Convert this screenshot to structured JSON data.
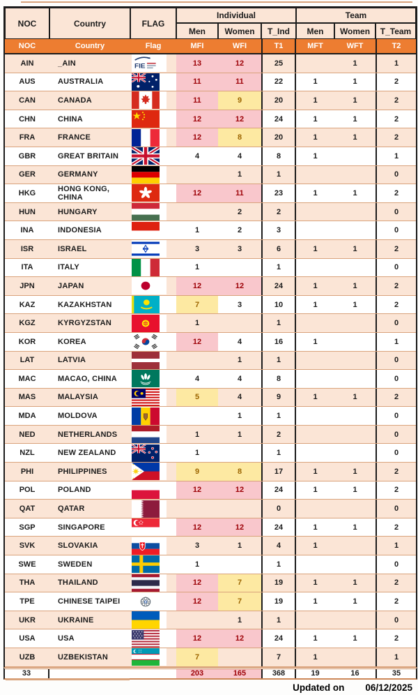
{
  "header": {
    "group": {
      "noc": "NOC",
      "country": "Country",
      "flag": "FLAG",
      "individual": "Individual",
      "team": "Team"
    },
    "sub": {
      "ind_men": "Men",
      "ind_women": "Women",
      "t_ind": "T_Ind",
      "team_men": "Men",
      "team_women": "Women",
      "t_team": "T_Team"
    },
    "code_row": {
      "noc": "NOC",
      "country": "Country",
      "flag": "Flag",
      "mfi": "MFI",
      "wfi": "WFI",
      "t1": "T1",
      "mft": "MFT",
      "wft": "WFT",
      "t2": "T2"
    }
  },
  "rows": [
    {
      "noc": "AIN",
      "country": "_AIN",
      "flag": "ain",
      "flag_icon": "flag-ain-fie-icon",
      "mfi": "13",
      "mfi_hl": "p",
      "wfi": "12",
      "wfi_hl": "p",
      "t1": "25",
      "mft": "",
      "wft": "1",
      "t2": "1"
    },
    {
      "noc": "AUS",
      "country": "AUSTRALIA",
      "flag": "aus",
      "flag_icon": "flag-australia-icon",
      "mfi": "11",
      "mfi_hl": "p",
      "wfi": "11",
      "wfi_hl": "p",
      "t1": "22",
      "mft": "1",
      "wft": "1",
      "t2": "2"
    },
    {
      "noc": "CAN",
      "country": "CANADA",
      "flag": "can",
      "flag_icon": "flag-canada-icon",
      "mfi": "11",
      "mfi_hl": "p",
      "wfi": "9",
      "wfi_hl": "y",
      "t1": "20",
      "mft": "1",
      "wft": "1",
      "t2": "2"
    },
    {
      "noc": "CHN",
      "country": "CHINA",
      "flag": "chn",
      "flag_icon": "flag-china-icon",
      "mfi": "12",
      "mfi_hl": "p",
      "wfi": "12",
      "wfi_hl": "p",
      "t1": "24",
      "mft": "1",
      "wft": "1",
      "t2": "2"
    },
    {
      "noc": "FRA",
      "country": "FRANCE",
      "flag": "fra",
      "flag_icon": "flag-france-icon",
      "mfi": "12",
      "mfi_hl": "p",
      "wfi": "8",
      "wfi_hl": "y",
      "t1": "20",
      "mft": "1",
      "wft": "1",
      "t2": "2"
    },
    {
      "noc": "GBR",
      "country": "GREAT BRITAIN",
      "flag": "gbr",
      "flag_icon": "flag-great-britain-icon",
      "mfi": "4",
      "mfi_hl": "",
      "wfi": "4",
      "wfi_hl": "",
      "t1": "8",
      "mft": "1",
      "wft": "",
      "t2": "1"
    },
    {
      "noc": "GER",
      "country": "GERMANY",
      "flag": "ger",
      "flag_icon": "flag-germany-icon",
      "mfi": "",
      "mfi_hl": "",
      "wfi": "1",
      "wfi_hl": "",
      "t1": "1",
      "mft": "",
      "wft": "",
      "t2": "0"
    },
    {
      "noc": "HKG",
      "country": "HONG KONG, CHINA",
      "flag": "hkg",
      "flag_icon": "flag-hong-kong-icon",
      "mfi": "12",
      "mfi_hl": "p",
      "wfi": "11",
      "wfi_hl": "p",
      "t1": "23",
      "mft": "1",
      "wft": "1",
      "t2": "2"
    },
    {
      "noc": "HUN",
      "country": "HUNGARY",
      "flag": "hun",
      "flag_icon": "flag-hungary-icon",
      "mfi": "",
      "mfi_hl": "",
      "wfi": "2",
      "wfi_hl": "",
      "t1": "2",
      "mft": "",
      "wft": "",
      "t2": "0"
    },
    {
      "noc": "INA",
      "country": "INDONESIA",
      "flag": "ina",
      "flag_icon": "flag-indonesia-icon",
      "mfi": "1",
      "mfi_hl": "",
      "wfi": "2",
      "wfi_hl": "",
      "t1": "3",
      "mft": "",
      "wft": "",
      "t2": "0"
    },
    {
      "noc": "ISR",
      "country": "ISRAEL",
      "flag": "isr",
      "flag_icon": "flag-israel-icon",
      "mfi": "3",
      "mfi_hl": "",
      "wfi": "3",
      "wfi_hl": "",
      "t1": "6",
      "mft": "1",
      "wft": "1",
      "t2": "2"
    },
    {
      "noc": "ITA",
      "country": "ITALY",
      "flag": "ita",
      "flag_icon": "flag-italy-icon",
      "mfi": "1",
      "mfi_hl": "",
      "wfi": "",
      "wfi_hl": "",
      "t1": "1",
      "mft": "",
      "wft": "",
      "t2": "0"
    },
    {
      "noc": "JPN",
      "country": "JAPAN",
      "flag": "jpn",
      "flag_icon": "flag-japan-icon",
      "mfi": "12",
      "mfi_hl": "p",
      "wfi": "12",
      "wfi_hl": "p",
      "t1": "24",
      "mft": "1",
      "wft": "1",
      "t2": "2"
    },
    {
      "noc": "KAZ",
      "country": "KAZAKHSTAN",
      "flag": "kaz",
      "flag_icon": "flag-kazakhstan-icon",
      "mfi": "7",
      "mfi_hl": "y",
      "wfi": "3",
      "wfi_hl": "",
      "t1": "10",
      "mft": "1",
      "wft": "1",
      "t2": "2"
    },
    {
      "noc": "KGZ",
      "country": "KYRGYZSTAN",
      "flag": "kgz",
      "flag_icon": "flag-kyrgyzstan-icon",
      "mfi": "1",
      "mfi_hl": "",
      "wfi": "",
      "wfi_hl": "",
      "t1": "1",
      "mft": "",
      "wft": "",
      "t2": "0"
    },
    {
      "noc": "KOR",
      "country": "KOREA",
      "flag": "kor",
      "flag_icon": "flag-korea-icon",
      "mfi": "12",
      "mfi_hl": "p",
      "wfi": "4",
      "wfi_hl": "",
      "t1": "16",
      "mft": "1",
      "wft": "",
      "t2": "1"
    },
    {
      "noc": "LAT",
      "country": "LATVIA",
      "flag": "lat",
      "flag_icon": "flag-latvia-icon",
      "mfi": "",
      "mfi_hl": "",
      "wfi": "1",
      "wfi_hl": "",
      "t1": "1",
      "mft": "",
      "wft": "",
      "t2": "0"
    },
    {
      "noc": "MAC",
      "country": "MACAO, CHINA",
      "flag": "mac",
      "flag_icon": "flag-macao-icon",
      "mfi": "4",
      "mfi_hl": "",
      "wfi": "4",
      "wfi_hl": "",
      "t1": "8",
      "mft": "",
      "wft": "",
      "t2": "0"
    },
    {
      "noc": "MAS",
      "country": "MALAYSIA",
      "flag": "mas",
      "flag_icon": "flag-malaysia-icon",
      "mfi": "5",
      "mfi_hl": "y",
      "wfi": "4",
      "wfi_hl": "",
      "t1": "9",
      "mft": "1",
      "wft": "1",
      "t2": "2"
    },
    {
      "noc": "MDA",
      "country": "MOLDOVA",
      "flag": "mda",
      "flag_icon": "flag-moldova-icon",
      "mfi": "",
      "mfi_hl": "",
      "wfi": "1",
      "wfi_hl": "",
      "t1": "1",
      "mft": "",
      "wft": "",
      "t2": "0"
    },
    {
      "noc": "NED",
      "country": "NETHERLANDS",
      "flag": "ned",
      "flag_icon": "flag-netherlands-icon",
      "mfi": "1",
      "mfi_hl": "",
      "wfi": "1",
      "wfi_hl": "",
      "t1": "2",
      "mft": "",
      "wft": "",
      "t2": "0"
    },
    {
      "noc": "NZL",
      "country": "NEW ZEALAND",
      "flag": "nzl",
      "flag_icon": "flag-new-zealand-icon",
      "mfi": "1",
      "mfi_hl": "",
      "wfi": "",
      "wfi_hl": "",
      "t1": "1",
      "mft": "",
      "wft": "",
      "t2": "0"
    },
    {
      "noc": "PHI",
      "country": "PHILIPPINES",
      "flag": "phi",
      "flag_icon": "flag-philippines-icon",
      "mfi": "9",
      "mfi_hl": "y",
      "wfi": "8",
      "wfi_hl": "y",
      "t1": "17",
      "mft": "1",
      "wft": "1",
      "t2": "2"
    },
    {
      "noc": "POL",
      "country": "POLAND",
      "flag": "pol",
      "flag_icon": "flag-poland-icon",
      "mfi": "12",
      "mfi_hl": "p",
      "wfi": "12",
      "wfi_hl": "p",
      "t1": "24",
      "mft": "1",
      "wft": "1",
      "t2": "2"
    },
    {
      "noc": "QAT",
      "country": "QATAR",
      "flag": "qat",
      "flag_icon": "flag-qatar-icon",
      "mfi": "",
      "mfi_hl": "",
      "wfi": "",
      "wfi_hl": "",
      "t1": "0",
      "mft": "",
      "wft": "",
      "t2": "0"
    },
    {
      "noc": "SGP",
      "country": "SINGAPORE",
      "flag": "sgp",
      "flag_icon": "flag-singapore-icon",
      "mfi": "12",
      "mfi_hl": "p",
      "wfi": "12",
      "wfi_hl": "p",
      "t1": "24",
      "mft": "1",
      "wft": "1",
      "t2": "2"
    },
    {
      "noc": "SVK",
      "country": "SLOVAKIA",
      "flag": "svk",
      "flag_icon": "flag-slovakia-icon",
      "mfi": "3",
      "mfi_hl": "",
      "wfi": "1",
      "wfi_hl": "",
      "t1": "4",
      "mft": "1",
      "wft": "",
      "t2": "1"
    },
    {
      "noc": "SWE",
      "country": "SWEDEN",
      "flag": "swe",
      "flag_icon": "flag-sweden-icon",
      "mfi": "1",
      "mfi_hl": "",
      "wfi": "",
      "wfi_hl": "",
      "t1": "1",
      "mft": "",
      "wft": "",
      "t2": "0"
    },
    {
      "noc": "THA",
      "country": "THAILAND",
      "flag": "tha",
      "flag_icon": "flag-thailand-icon",
      "mfi": "12",
      "mfi_hl": "p",
      "wfi": "7",
      "wfi_hl": "y",
      "t1": "19",
      "mft": "1",
      "wft": "1",
      "t2": "2"
    },
    {
      "noc": "TPE",
      "country": "CHINESE TAIPEI",
      "flag": "tpe",
      "flag_icon": "flag-chinese-taipei-icon",
      "mfi": "12",
      "mfi_hl": "p",
      "wfi": "7",
      "wfi_hl": "y",
      "t1": "19",
      "mft": "1",
      "wft": "1",
      "t2": "2"
    },
    {
      "noc": "UKR",
      "country": "UKRAINE",
      "flag": "ukr",
      "flag_icon": "flag-ukraine-icon",
      "mfi": "",
      "mfi_hl": "",
      "wfi": "1",
      "wfi_hl": "",
      "t1": "1",
      "mft": "",
      "wft": "",
      "t2": "0"
    },
    {
      "noc": "USA",
      "country": "USA",
      "flag": "usa",
      "flag_icon": "flag-usa-icon",
      "mfi": "12",
      "mfi_hl": "p",
      "wfi": "12",
      "wfi_hl": "p",
      "t1": "24",
      "mft": "1",
      "wft": "1",
      "t2": "2"
    },
    {
      "noc": "UZB",
      "country": "UZBEKISTAN",
      "flag": "uzb",
      "flag_icon": "flag-uzbekistan-icon",
      "mfi": "7",
      "mfi_hl": "y",
      "wfi": "",
      "wfi_hl": "",
      "t1": "7",
      "mft": "1",
      "wft": "",
      "t2": "1"
    }
  ],
  "footer": {
    "noc_count": "33",
    "mfi": "203",
    "mfi_hl": "p",
    "wfi": "165",
    "wfi_hl": "p",
    "t1": "368",
    "mft": "19",
    "wft": "16",
    "t2": "35"
  },
  "updated": {
    "label": "Updated on",
    "date": "06/12/2025"
  },
  "colors": {
    "header_orange": "#ed7d31",
    "row_peach": "#fbe5d6",
    "highlight_pink": "#f9c7cc",
    "highlight_pink_text": "#9c0006",
    "highlight_yellow": "#fde9a2",
    "highlight_yellow_text": "#9c6500",
    "grid_black": "#1b1b1b",
    "separator_tan": "#d9a27b",
    "footer_rule": "#cd8757"
  }
}
